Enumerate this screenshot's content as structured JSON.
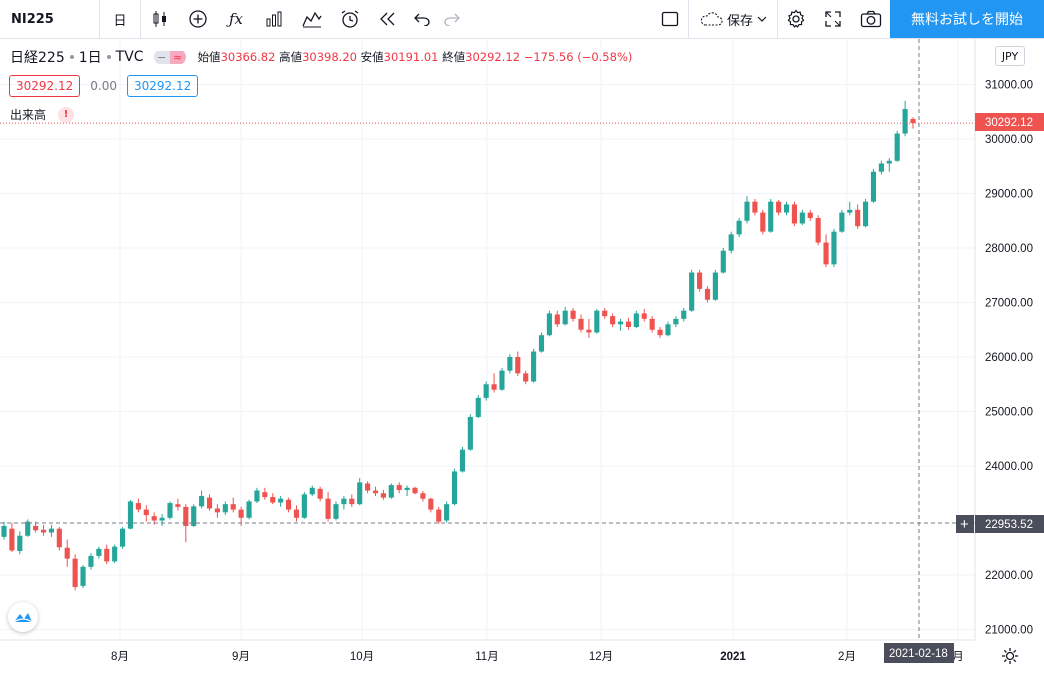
{
  "toolbar": {
    "symbol": "NI225",
    "interval": "日",
    "save_label": "保存",
    "trial_label": "無料お試しを開始"
  },
  "legend": {
    "title": "日経225",
    "interval": "1日",
    "exchange": "TVC",
    "open_label": "始値",
    "open": "30366.82",
    "high_label": "高値",
    "high": "30398.20",
    "low_label": "安値",
    "low": "30191.01",
    "close_label": "終値",
    "close": "30292.12",
    "change": "−175.56 (−0.58%)",
    "sell": "30292.12",
    "spread": "0.00",
    "buy": "30292.12",
    "volume_label": "出来高",
    "volume_warning": "!"
  },
  "currency": "JPY",
  "price_axis": {
    "ticks": [
      "31000.00",
      "30000.00",
      "29000.00",
      "28000.00",
      "27000.00",
      "26000.00",
      "25000.00",
      "24000.00",
      "22000.00",
      "21000.00"
    ],
    "last_price": "30292.12",
    "crosshair_price": "22953.52"
  },
  "time_axis": {
    "labels": [
      "8月",
      "9月",
      "10月",
      "11月",
      "12月",
      "2021",
      "2月",
      "月"
    ],
    "crosshair_date": "2021-02-18"
  },
  "colors": {
    "up": "#26a69a",
    "down": "#ef5350",
    "accent": "#2196f3"
  },
  "chart_data": {
    "type": "candlestick",
    "x_range": [
      "2020-07",
      "2021-02-19"
    ],
    "ylim": [
      20900,
      31150
    ],
    "last_close": 30292.12,
    "crosshair": {
      "date": "2021-02-18",
      "price": 22953.52
    },
    "candles": [
      [
        22700,
        22980,
        22650,
        22900
      ],
      [
        22850,
        22960,
        22420,
        22450
      ],
      [
        22440,
        22800,
        22380,
        22720
      ],
      [
        22720,
        23020,
        22700,
        22980
      ],
      [
        22900,
        22980,
        22780,
        22820
      ],
      [
        22830,
        22920,
        22720,
        22780
      ],
      [
        22780,
        22920,
        22700,
        22850
      ],
      [
        22850,
        22880,
        22450,
        22510
      ],
      [
        22500,
        22650,
        22150,
        22300
      ],
      [
        22300,
        22380,
        21720,
        21780
      ],
      [
        21800,
        22180,
        21760,
        22150
      ],
      [
        22150,
        22400,
        22100,
        22350
      ],
      [
        22350,
        22520,
        22300,
        22480
      ],
      [
        22480,
        22560,
        22200,
        22250
      ],
      [
        22250,
        22560,
        22220,
        22520
      ],
      [
        22520,
        22880,
        22480,
        22850
      ],
      [
        22850,
        23380,
        22840,
        23350
      ],
      [
        23320,
        23400,
        23150,
        23200
      ],
      [
        23200,
        23280,
        22980,
        23100
      ],
      [
        23080,
        23150,
        22920,
        23000
      ],
      [
        23000,
        23120,
        22900,
        23050
      ],
      [
        23050,
        23350,
        23020,
        23320
      ],
      [
        23300,
        23400,
        23180,
        23250
      ],
      [
        23250,
        23300,
        22600,
        22900
      ],
      [
        22900,
        23300,
        22880,
        23260
      ],
      [
        23260,
        23550,
        23220,
        23450
      ],
      [
        23420,
        23480,
        23180,
        23220
      ],
      [
        23220,
        23300,
        23050,
        23150
      ],
      [
        23150,
        23350,
        23100,
        23300
      ],
      [
        23300,
        23420,
        23150,
        23200
      ],
      [
        23200,
        23250,
        22900,
        23050
      ],
      [
        23050,
        23380,
        23020,
        23350
      ],
      [
        23350,
        23600,
        23320,
        23550
      ],
      [
        23520,
        23600,
        23380,
        23430
      ],
      [
        23430,
        23500,
        23300,
        23330
      ],
      [
        23330,
        23450,
        23250,
        23400
      ],
      [
        23380,
        23420,
        23150,
        23200
      ],
      [
        23200,
        23280,
        22980,
        23050
      ],
      [
        23050,
        23520,
        23030,
        23480
      ],
      [
        23480,
        23640,
        23450,
        23600
      ],
      [
        23580,
        23620,
        23350,
        23400
      ],
      [
        23400,
        23520,
        22980,
        23030
      ],
      [
        23030,
        23350,
        23000,
        23300
      ],
      [
        23300,
        23450,
        23200,
        23400
      ],
      [
        23400,
        23480,
        23250,
        23300
      ],
      [
        23300,
        23780,
        23280,
        23700
      ],
      [
        23680,
        23720,
        23500,
        23550
      ],
      [
        23550,
        23620,
        23450,
        23500
      ],
      [
        23500,
        23560,
        23380,
        23420
      ],
      [
        23420,
        23680,
        23400,
        23650
      ],
      [
        23650,
        23700,
        23500,
        23560
      ],
      [
        23560,
        23640,
        23450,
        23600
      ],
      [
        23600,
        23620,
        23480,
        23500
      ],
      [
        23500,
        23540,
        23350,
        23400
      ],
      [
        23400,
        23420,
        23150,
        23200
      ],
      [
        23200,
        23250,
        22940,
        22980
      ],
      [
        23000,
        23350,
        22960,
        23300
      ],
      [
        23300,
        23950,
        23280,
        23900
      ],
      [
        23900,
        24350,
        23880,
        24300
      ],
      [
        24300,
        24950,
        24280,
        24900
      ],
      [
        24900,
        25300,
        24880,
        25250
      ],
      [
        25250,
        25550,
        25200,
        25500
      ],
      [
        25500,
        25700,
        25350,
        25400
      ],
      [
        25400,
        25800,
        25380,
        25750
      ],
      [
        25750,
        26050,
        25700,
        26000
      ],
      [
        26000,
        26100,
        25650,
        25700
      ],
      [
        25700,
        25750,
        25500,
        25550
      ],
      [
        25550,
        26150,
        25530,
        26100
      ],
      [
        26100,
        26450,
        26080,
        26400
      ],
      [
        26400,
        26850,
        26380,
        26800
      ],
      [
        26780,
        26850,
        26550,
        26600
      ],
      [
        26600,
        26920,
        26580,
        26850
      ],
      [
        26850,
        26900,
        26650,
        26700
      ],
      [
        26700,
        26780,
        26450,
        26500
      ],
      [
        26500,
        26700,
        26350,
        26450
      ],
      [
        26450,
        26880,
        26430,
        26850
      ],
      [
        26850,
        26900,
        26700,
        26750
      ],
      [
        26750,
        26800,
        26550,
        26600
      ],
      [
        26600,
        26700,
        26480,
        26650
      ],
      [
        26650,
        26720,
        26500,
        26550
      ],
      [
        26550,
        26850,
        26530,
        26800
      ],
      [
        26800,
        26880,
        26650,
        26700
      ],
      [
        26700,
        26750,
        26450,
        26500
      ],
      [
        26500,
        26550,
        26350,
        26400
      ],
      [
        26400,
        26650,
        26380,
        26600
      ],
      [
        26600,
        26750,
        26550,
        26700
      ],
      [
        26700,
        26900,
        26650,
        26850
      ],
      [
        26850,
        27600,
        26830,
        27550
      ],
      [
        27550,
        27600,
        27200,
        27250
      ],
      [
        27250,
        27300,
        27000,
        27050
      ],
      [
        27050,
        27600,
        27030,
        27550
      ],
      [
        27550,
        28000,
        27530,
        27950
      ],
      [
        27950,
        28300,
        27900,
        28250
      ],
      [
        28250,
        28550,
        28200,
        28500
      ],
      [
        28500,
        28950,
        28450,
        28850
      ],
      [
        28850,
        28900,
        28600,
        28650
      ],
      [
        28650,
        28700,
        28250,
        28300
      ],
      [
        28300,
        28900,
        28280,
        28850
      ],
      [
        28850,
        28880,
        28600,
        28650
      ],
      [
        28650,
        28850,
        28600,
        28800
      ],
      [
        28800,
        28850,
        28400,
        28450
      ],
      [
        28450,
        28700,
        28420,
        28650
      ],
      [
        28650,
        28700,
        28500,
        28550
      ],
      [
        28550,
        28600,
        28050,
        28100
      ],
      [
        28100,
        28250,
        27650,
        27700
      ],
      [
        27700,
        28350,
        27650,
        28300
      ],
      [
        28300,
        28700,
        28280,
        28650
      ],
      [
        28650,
        28850,
        28600,
        28700
      ],
      [
        28700,
        28800,
        28350,
        28400
      ],
      [
        28400,
        28900,
        28380,
        28850
      ],
      [
        28850,
        29450,
        28830,
        29400
      ],
      [
        29400,
        29600,
        29350,
        29550
      ],
      [
        29550,
        29650,
        29400,
        29600
      ],
      [
        29600,
        30150,
        29580,
        30100
      ],
      [
        30100,
        30700,
        30050,
        30550
      ],
      [
        30366.82,
        30398.2,
        30191.01,
        30292.12
      ]
    ]
  }
}
